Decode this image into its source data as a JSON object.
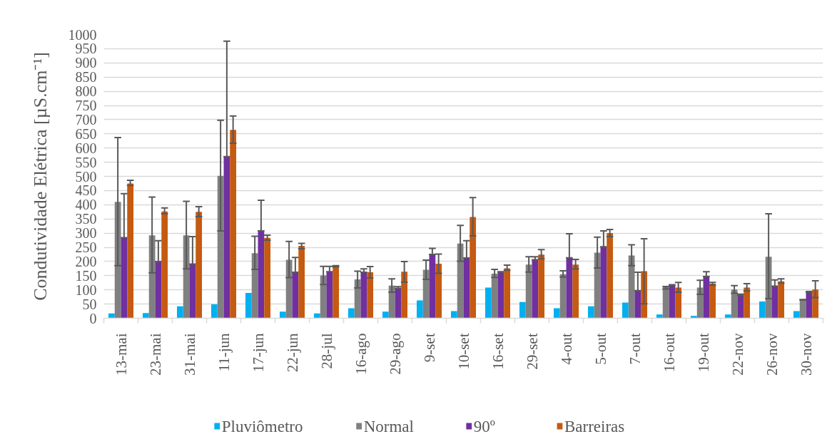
{
  "chart_data": {
    "type": "bar",
    "ylabel": "Condutividade Elétrica [µS.cm⁻¹]",
    "categories": [
      "13-mai",
      "23-mai",
      "31-mai",
      "11-jun",
      "17-jun",
      "22-jun",
      "28-jul",
      "16-ago",
      "29-ago",
      "9-set",
      "10-set",
      "16-set",
      "29-set",
      "4-out",
      "5-out",
      "7-out",
      "16-out",
      "19-out",
      "22-nov",
      "26-nov",
      "30-nov"
    ],
    "series": [
      {
        "name": "Pluviômetro",
        "color": "#00b0f0",
        "values": [
          17,
          18,
          42,
          49,
          89,
          23,
          17,
          35,
          23,
          63,
          25,
          108,
          57,
          35,
          42,
          55,
          13,
          8,
          13,
          59,
          25
        ]
      },
      {
        "name": "Normal",
        "color": "#808080",
        "values": [
          410,
          292,
          292,
          502,
          229,
          206,
          151,
          137,
          115,
          171,
          263,
          157,
          189,
          155,
          231,
          221,
          109,
          108,
          101,
          217,
          65
        ],
        "errors": [
          [
            185,
            637
          ],
          [
            160,
            427
          ],
          [
            174,
            412
          ],
          [
            308,
            698
          ],
          [
            172,
            289
          ],
          [
            143,
            271
          ],
          [
            119,
            183
          ],
          [
            107,
            166
          ],
          [
            92,
            139
          ],
          [
            137,
            205
          ],
          [
            201,
            327
          ],
          [
            144,
            172
          ],
          [
            163,
            217
          ],
          [
            145,
            167
          ],
          [
            177,
            286
          ],
          [
            185,
            259
          ],
          [
            103,
            112
          ],
          [
            84,
            134
          ],
          [
            88,
            115
          ],
          [
            69,
            368
          ],
          [
            64,
            66
          ]
        ]
      },
      {
        "name": "90º",
        "color": "#7030a0",
        "values": [
          284,
          200,
          191,
          570,
          308,
          162,
          164,
          162,
          105,
          225,
          212,
          162,
          206,
          213,
          252,
          97,
          115,
          147,
          80,
          113,
          92
        ],
        "errors": [
          [
            284,
            439
          ],
          [
            200,
            273
          ],
          [
            191,
            288
          ],
          [
            570,
            977
          ],
          [
            308,
            416
          ],
          [
            162,
            214
          ],
          [
            164,
            183
          ],
          [
            162,
            174
          ],
          [
            105,
            111
          ],
          [
            225,
            246
          ],
          [
            212,
            273
          ],
          [
            162,
            164
          ],
          [
            206,
            217
          ],
          [
            213,
            298
          ],
          [
            252,
            308
          ],
          [
            97,
            162
          ],
          [
            115,
            118
          ],
          [
            147,
            164
          ],
          [
            80,
            85
          ],
          [
            113,
            135
          ],
          [
            92,
            94
          ]
        ]
      },
      {
        "name": "Barreiras",
        "color": "#c55a11",
        "values": [
          475,
          376,
          375,
          664,
          283,
          255,
          183,
          162,
          164,
          192,
          357,
          176,
          224,
          189,
          300,
          166,
          108,
          122,
          108,
          130,
          101
        ],
        "errors": [
          [
            468,
            486
          ],
          [
            368,
            389
          ],
          [
            358,
            393
          ],
          [
            617,
            713
          ],
          [
            275,
            293
          ],
          [
            245,
            264
          ],
          [
            181,
            185
          ],
          [
            142,
            182
          ],
          [
            127,
            200
          ],
          [
            158,
            226
          ],
          [
            290,
            425
          ],
          [
            169,
            187
          ],
          [
            209,
            242
          ],
          [
            174,
            207
          ],
          [
            288,
            313
          ],
          [
            51,
            280
          ],
          [
            92,
            126
          ],
          [
            116,
            126
          ],
          [
            96,
            122
          ],
          [
            124,
            139
          ],
          [
            73,
            132
          ]
        ]
      }
    ],
    "ylim": [
      0,
      1000
    ],
    "yticks": [
      0,
      50,
      100,
      150,
      200,
      250,
      300,
      350,
      400,
      450,
      500,
      550,
      600,
      650,
      700,
      750,
      800,
      850,
      900,
      950,
      1000
    ],
    "grid": "y",
    "legend": "bottom"
  }
}
